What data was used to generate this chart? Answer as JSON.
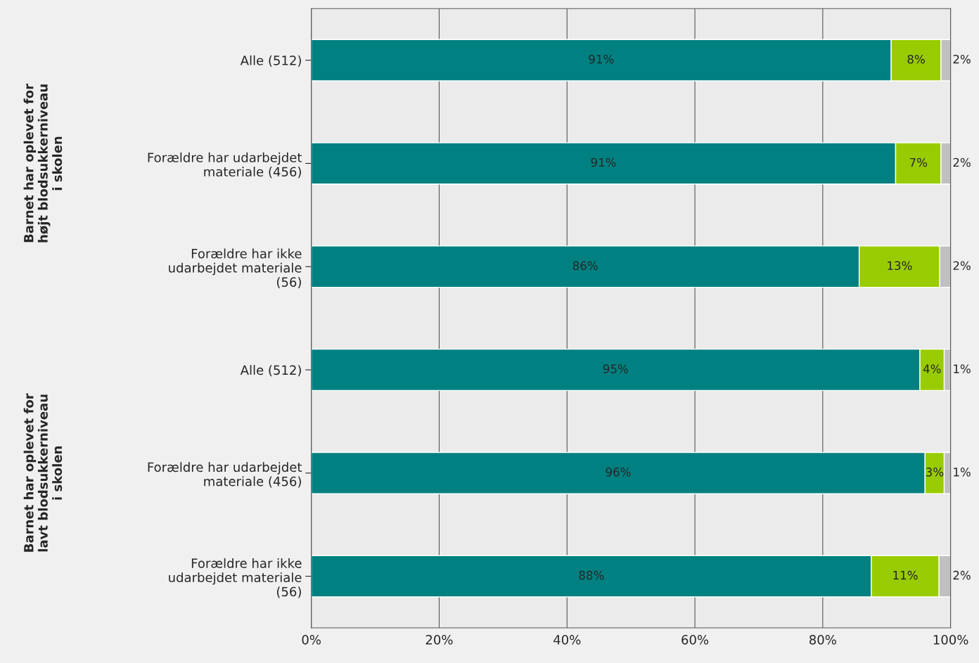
{
  "chart_data": {
    "type": "bar",
    "orientation": "horizontal",
    "stacked": true,
    "categories": [
      "Alle (512)",
      "Forældre har udarbejdet\nmateriale (456)",
      "Forældre har ikke\nudarbejdet materiale\n(56)",
      "Alle (512)",
      "Forældre har udarbejdet\nmateriale (456)",
      "Forældre har ikke\nudarbejdet materiale\n(56)"
    ],
    "series": [
      {
        "color": "#008080",
        "values": [
          90.7,
          91.4,
          85.7,
          95.2,
          96.0,
          87.6
        ],
        "value_labels": [
          "91%",
          "91%",
          "86%",
          "95%",
          "96%",
          "88%"
        ]
      },
      {
        "color": "#99cc00",
        "values": [
          7.8,
          7.1,
          12.6,
          3.8,
          3.0,
          10.6
        ],
        "value_labels": [
          "8%",
          "7%",
          "13%",
          "4%",
          "3%",
          "11%"
        ]
      },
      {
        "color": "#c0c0c0",
        "values": [
          1.5,
          1.5,
          1.7,
          1.0,
          1.0,
          1.8
        ],
        "value_labels": [
          "2%",
          "2%",
          "2%",
          "1%",
          "1%",
          "2%"
        ]
      }
    ],
    "xlim": [
      0,
      100
    ],
    "xticks": [
      {
        "value": 0,
        "label": "0%"
      },
      {
        "value": 20,
        "label": "20%"
      },
      {
        "value": 40,
        "label": "40%"
      },
      {
        "value": 60,
        "label": "60%"
      },
      {
        "value": 80,
        "label": "80%"
      },
      {
        "value": 100,
        "label": "100%"
      }
    ],
    "grid": "x",
    "legend": false,
    "annotations": [
      "Barnet har oplevet for\nhøjt blodsukkerniveau\ni skolen",
      "Barnet har oplevet for\nlavt blodsukkerniveau\ni skolen"
    ]
  }
}
